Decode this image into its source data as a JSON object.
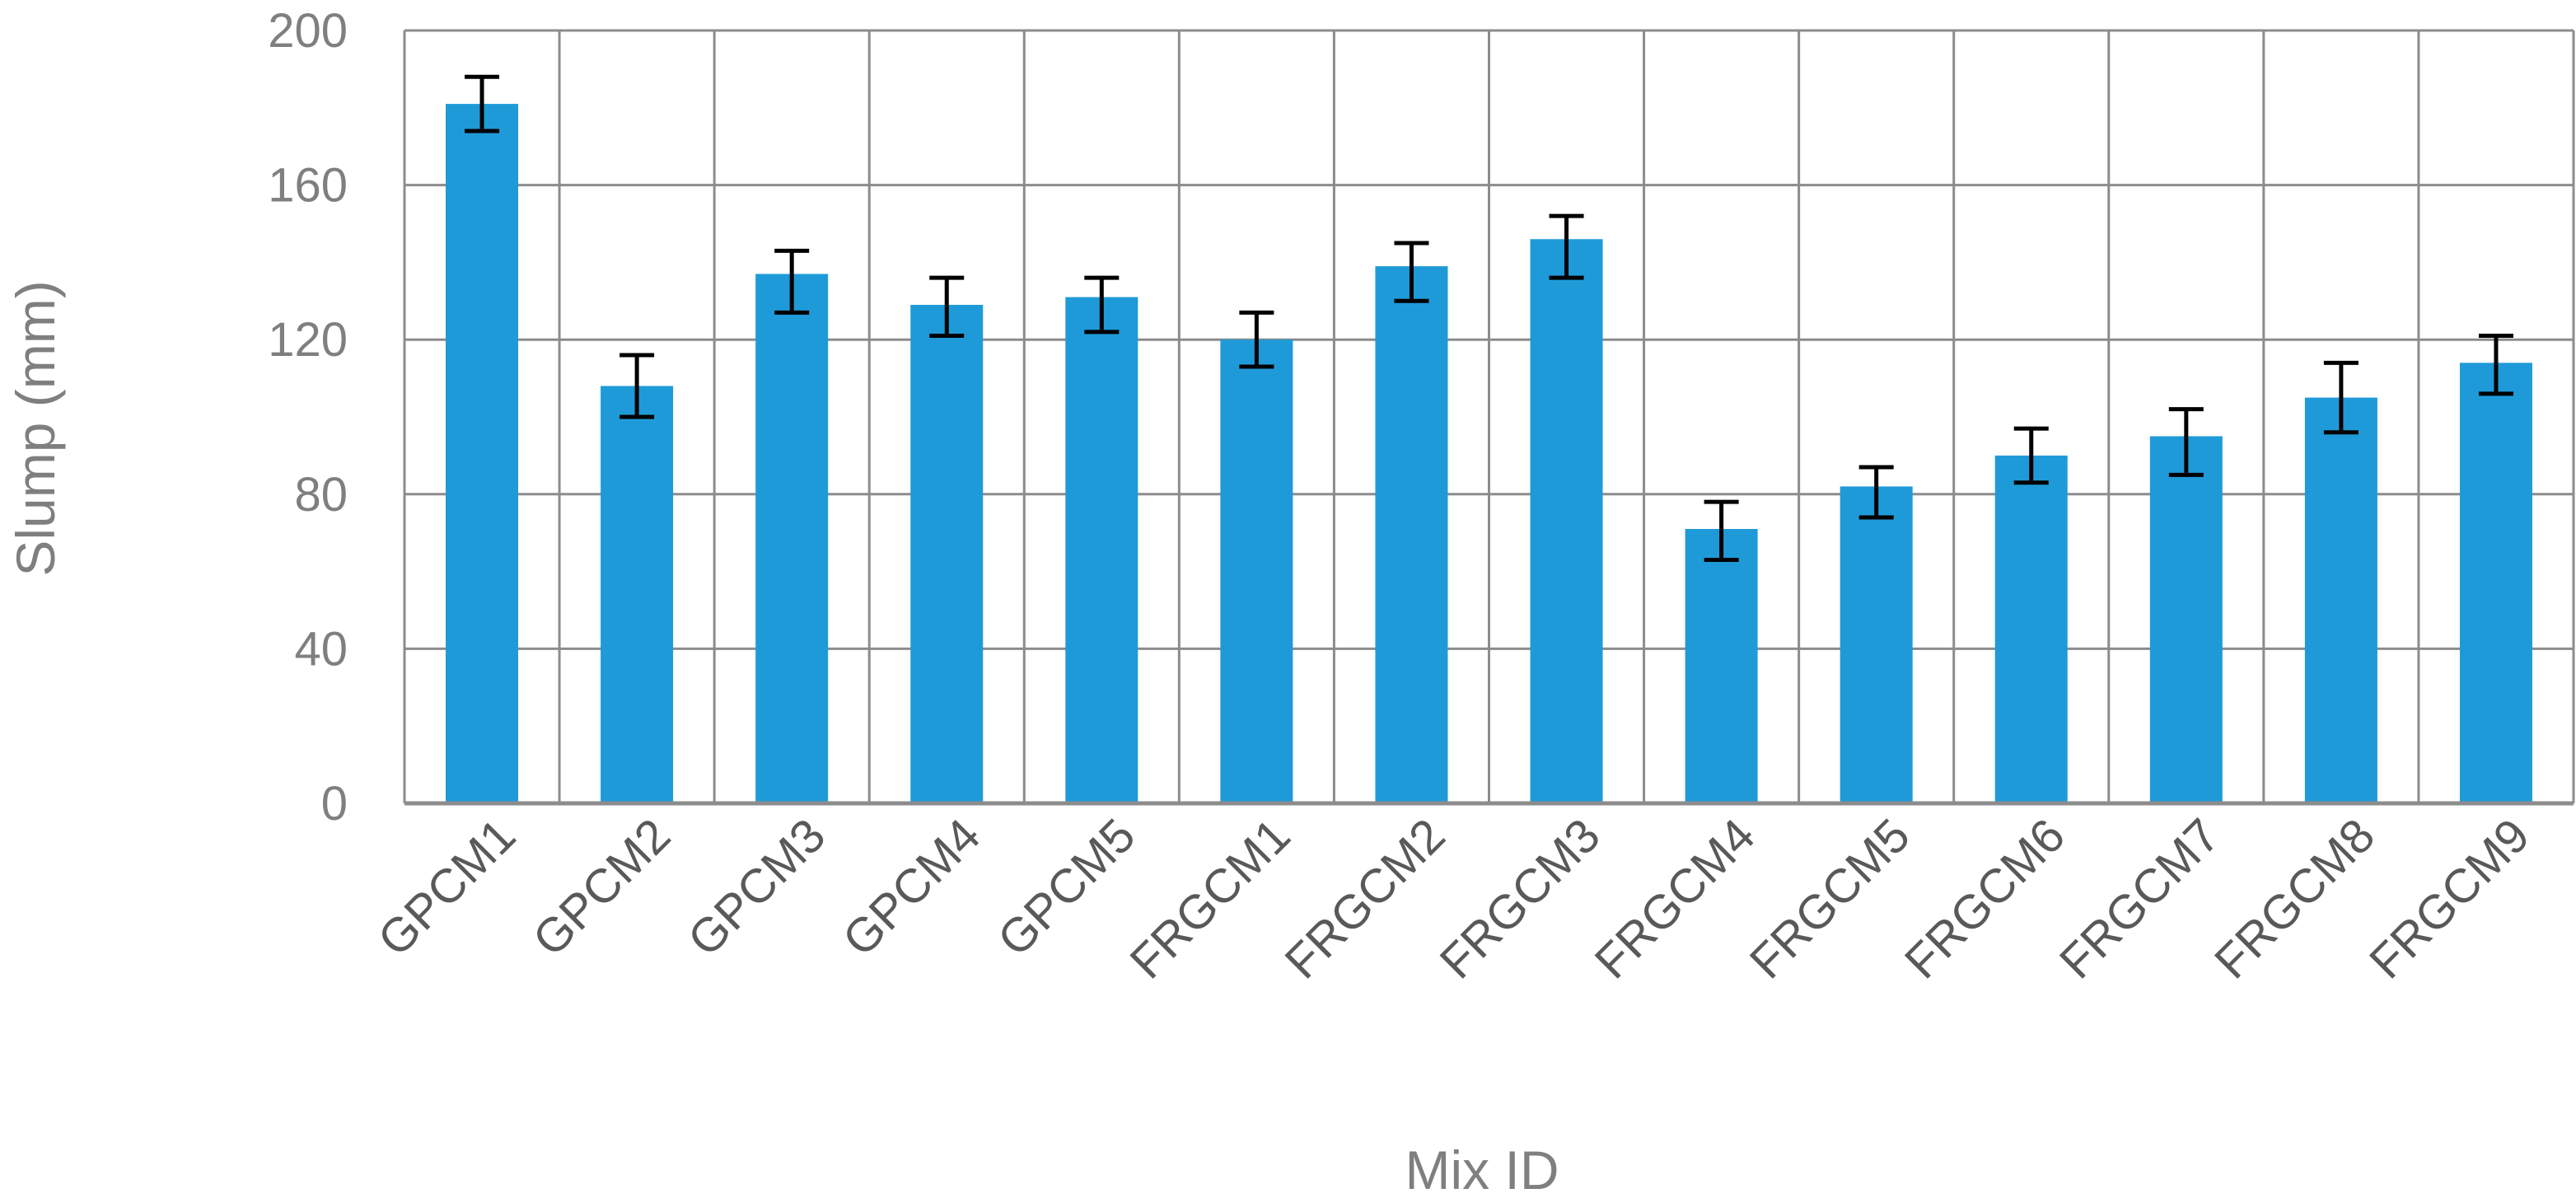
{
  "chart_data": {
    "type": "bar",
    "title": "",
    "xlabel": "Mix ID",
    "ylabel": "Slump (mm)",
    "ylim": [
      0,
      200
    ],
    "yticks": [
      0,
      40,
      80,
      120,
      160,
      200
    ],
    "grid": true,
    "legend": "none",
    "bar_color": "#1f9ad8",
    "error_bar_color": "#000000",
    "categories": [
      "GPCM1",
      "GPCM2",
      "GPCM3",
      "GPCM4",
      "GPCM5",
      "FRGCM1",
      "FRGCM2",
      "FRGCM3",
      "FRGCM4",
      "FRGCM5",
      "FRGCM6",
      "FRGCM7",
      "FRGCM8",
      "FRGCM9"
    ],
    "values": [
      181,
      108,
      137,
      129,
      131,
      120,
      139,
      146,
      71,
      82,
      90,
      95,
      105,
      114
    ],
    "error_low": [
      174,
      100,
      127,
      121,
      122,
      113,
      130,
      136,
      63,
      74,
      83,
      85,
      96,
      106
    ],
    "error_high": [
      188,
      116,
      143,
      136,
      136,
      127,
      145,
      152,
      78,
      87,
      97,
      102,
      114,
      121
    ]
  }
}
